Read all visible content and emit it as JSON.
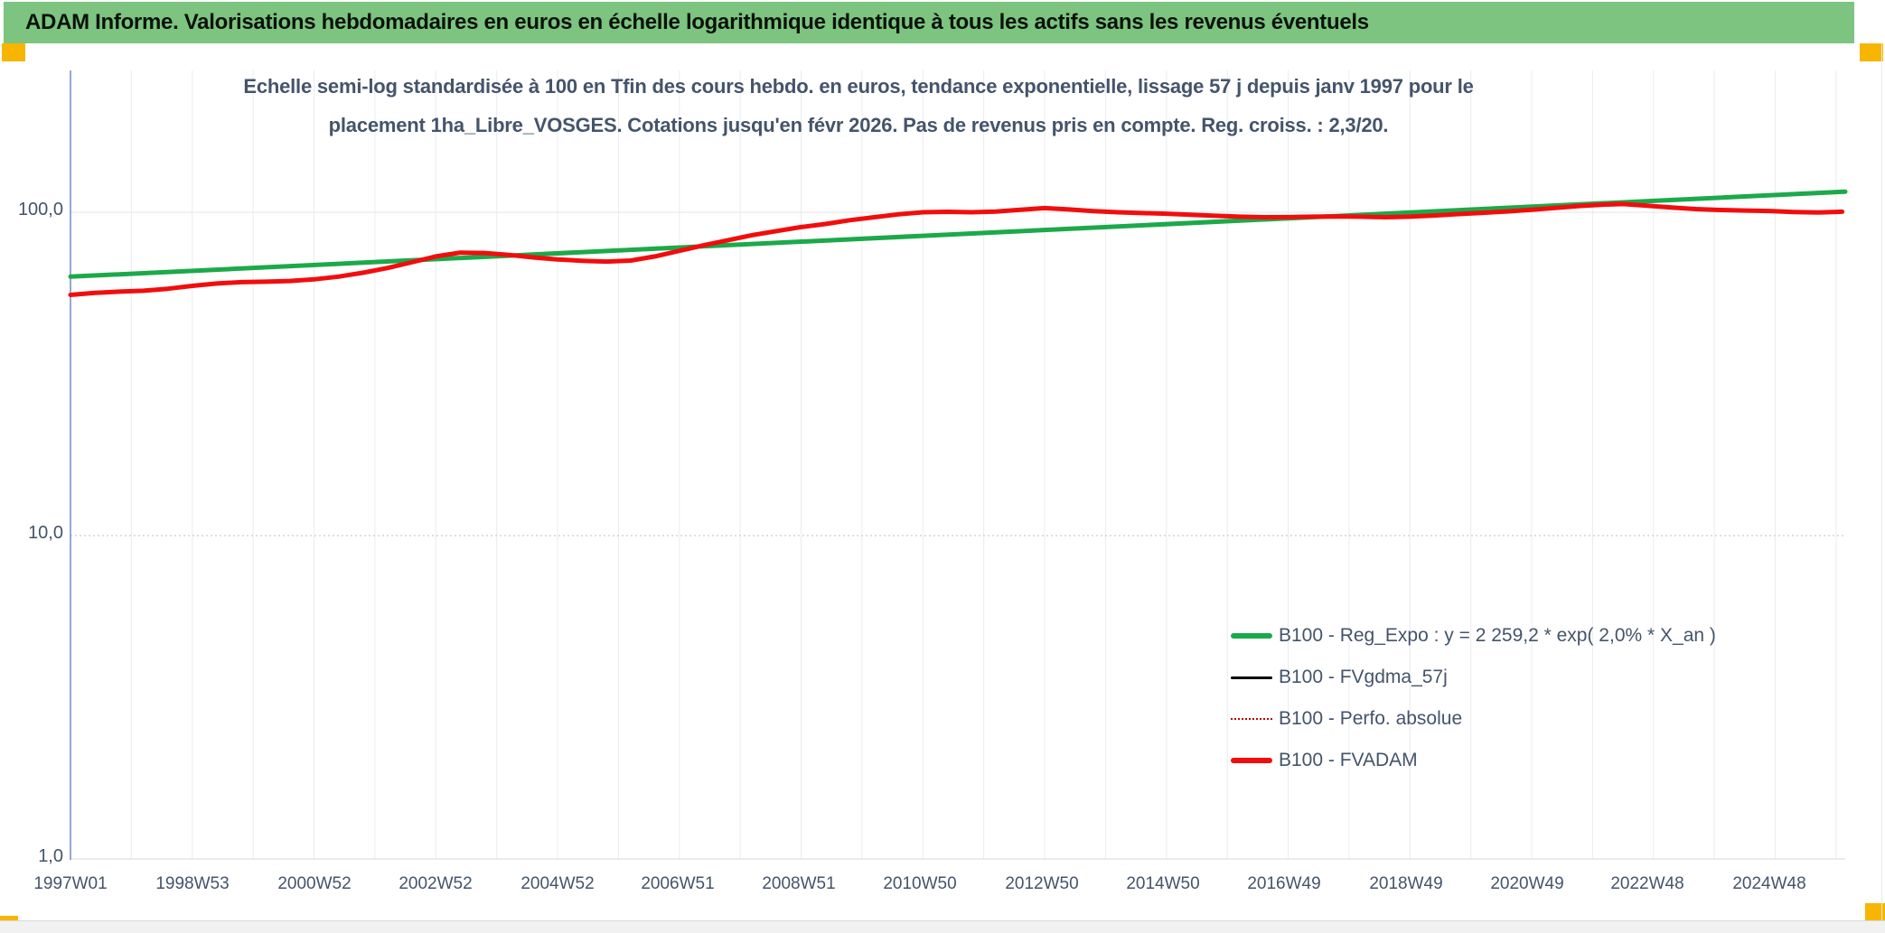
{
  "header": {
    "title": "ADAM Informe. Valorisations hebdomadaires en euros en échelle logarithmique identique à tous les actifs sans les revenus éventuels"
  },
  "accents": {
    "banner_green": "#7CC47F",
    "handle_yellow": "#F7B500"
  },
  "chart_data": {
    "type": "line",
    "scale": "semi-log",
    "subtitle": {
      "line1": "Echelle semi-log standardisée à 100 en Tfin des cours hebdo. en euros, tendance exponentielle, lissage 57 j depuis janv 1997 pour le",
      "line2": "placement 1ha_Libre_VOSGES. Cotations jusqu'en févr 2026. Pas de revenus pris en compte. Reg. croiss. : 2,3/20."
    },
    "y_axis": {
      "scale": "log",
      "ticks": [
        {
          "label": "100,0",
          "value": 100
        },
        {
          "label": "10,0",
          "value": 10
        },
        {
          "label": "1,0",
          "value": 1
        }
      ],
      "range": [
        1,
        238
      ]
    },
    "x_axis": {
      "start_year": 1997.0,
      "end_year": 2026.15,
      "gridline_step_years": 1,
      "ticks": [
        {
          "label": "1997W01",
          "year": 1997.0
        },
        {
          "label": "1998W53",
          "year": 1999.0
        },
        {
          "label": "2000W52",
          "year": 2001.0
        },
        {
          "label": "2002W52",
          "year": 2003.0
        },
        {
          "label": "2004W52",
          "year": 2005.0
        },
        {
          "label": "2006W51",
          "year": 2006.97
        },
        {
          "label": "2008W51",
          "year": 2008.97
        },
        {
          "label": "2010W50",
          "year": 2010.95
        },
        {
          "label": "2012W50",
          "year": 2012.95
        },
        {
          "label": "2014W50",
          "year": 2014.94
        },
        {
          "label": "2016W49",
          "year": 2016.93
        },
        {
          "label": "2018W49",
          "year": 2018.93
        },
        {
          "label": "2020W49",
          "year": 2020.92
        },
        {
          "label": "2022W48",
          "year": 2022.9
        },
        {
          "label": "2024W48",
          "year": 2024.9
        }
      ]
    },
    "series": [
      {
        "name": "B100 - Reg_Expo : y = 2 259,2 * exp( 2,0% *  X_an )",
        "color": "#1CA94A",
        "width": 5,
        "style": "solid",
        "points": [
          [
            1997.0,
            63.2
          ],
          [
            2026.15,
            115.8
          ]
        ]
      },
      {
        "name": "B100 - FVgdma_57j",
        "color": "#000000",
        "width": 2.5,
        "style": "solid",
        "points_ref": "B100 - FVADAM",
        "note": "visually coincident with B100 - FVADAM (hidden beneath it)"
      },
      {
        "name": "B100 - Perfo. absolue",
        "color": "#C00000",
        "width": 1.5,
        "style": "dotted",
        "points_ref": "B100 - FVADAM",
        "note": "visually coincident with B100 - FVADAM (hidden beneath it)"
      },
      {
        "name": "B100 - FVADAM",
        "color": "#F20D0D",
        "width": 5,
        "style": "solid",
        "points": [
          [
            1997.0,
            55.5
          ],
          [
            1997.4,
            56.3
          ],
          [
            1997.8,
            56.8
          ],
          [
            1998.2,
            57.2
          ],
          [
            1998.6,
            58.0
          ],
          [
            1999.0,
            59.2
          ],
          [
            1999.4,
            60.2
          ],
          [
            1999.8,
            60.8
          ],
          [
            2000.2,
            61.0
          ],
          [
            2000.6,
            61.3
          ],
          [
            2001.0,
            62.0
          ],
          [
            2001.4,
            63.2
          ],
          [
            2001.8,
            65.0
          ],
          [
            2002.2,
            67.2
          ],
          [
            2002.6,
            70.0
          ],
          [
            2003.0,
            73.0
          ],
          [
            2003.4,
            75.0
          ],
          [
            2003.8,
            74.8
          ],
          [
            2004.2,
            73.8
          ],
          [
            2004.6,
            72.5
          ],
          [
            2005.0,
            71.5
          ],
          [
            2005.4,
            70.8
          ],
          [
            2005.8,
            70.4
          ],
          [
            2006.2,
            70.9
          ],
          [
            2006.6,
            73.0
          ],
          [
            2007.0,
            76.0
          ],
          [
            2007.4,
            79.0
          ],
          [
            2007.8,
            82.0
          ],
          [
            2008.2,
            85.0
          ],
          [
            2008.6,
            87.5
          ],
          [
            2009.0,
            90.0
          ],
          [
            2009.4,
            92.0
          ],
          [
            2009.8,
            94.5
          ],
          [
            2010.2,
            96.5
          ],
          [
            2010.6,
            98.5
          ],
          [
            2011.0,
            100.0
          ],
          [
            2011.4,
            100.3
          ],
          [
            2011.8,
            100.0
          ],
          [
            2012.2,
            100.5
          ],
          [
            2012.6,
            101.8
          ],
          [
            2013.0,
            103.0
          ],
          [
            2013.4,
            102.0
          ],
          [
            2013.8,
            100.8
          ],
          [
            2014.2,
            100.0
          ],
          [
            2014.6,
            99.4
          ],
          [
            2015.0,
            99.0
          ],
          [
            2015.4,
            98.2
          ],
          [
            2015.8,
            97.5
          ],
          [
            2016.2,
            96.9
          ],
          [
            2016.6,
            96.5
          ],
          [
            2017.0,
            96.6
          ],
          [
            2017.4,
            96.9
          ],
          [
            2017.8,
            97.1
          ],
          [
            2018.2,
            96.9
          ],
          [
            2018.6,
            96.5
          ],
          [
            2019.0,
            96.9
          ],
          [
            2019.4,
            97.7
          ],
          [
            2019.8,
            98.7
          ],
          [
            2020.2,
            99.6
          ],
          [
            2020.6,
            100.6
          ],
          [
            2021.0,
            101.8
          ],
          [
            2021.4,
            103.2
          ],
          [
            2021.8,
            104.6
          ],
          [
            2022.2,
            105.6
          ],
          [
            2022.5,
            106.0
          ],
          [
            2022.9,
            104.8
          ],
          [
            2023.3,
            103.4
          ],
          [
            2023.7,
            102.3
          ],
          [
            2024.1,
            101.6
          ],
          [
            2024.5,
            101.2
          ],
          [
            2024.9,
            100.9
          ],
          [
            2025.3,
            100.2
          ],
          [
            2025.7,
            99.8
          ],
          [
            2026.1,
            100.4
          ]
        ]
      }
    ],
    "legend": [
      {
        "label": "B100 - Reg_Expo : y = 2 259,2 * exp( 2,0% *  X_an )",
        "color": "#1CA94A",
        "style": "solid",
        "thickness": 6
      },
      {
        "label": "B100 - FVgdma_57j",
        "color": "#000000",
        "style": "solid",
        "thickness": 3
      },
      {
        "label": "B100 - Perfo. absolue",
        "color": "#C00000",
        "style": "dotted",
        "thickness": 2
      },
      {
        "label": "B100 - FVADAM",
        "color": "#F20D0D",
        "style": "solid",
        "thickness": 6
      }
    ],
    "legend_position": "inside-right-lower",
    "grid": {
      "vertical": "yearly",
      "horizontal": "log-decades"
    }
  }
}
